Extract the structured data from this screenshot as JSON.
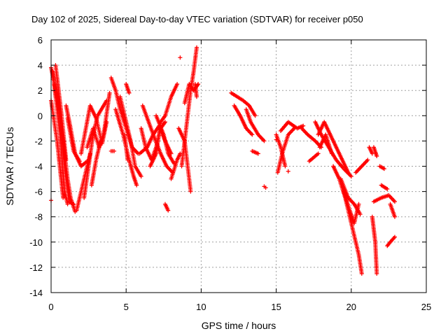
{
  "chart_data": {
    "type": "scatter",
    "title": "Day 102 of 2025, Sidereal Day-to-day VTEC variation (SDTVAR) for receiver p050",
    "xlabel": "GPS time / hours",
    "ylabel": "SDTVAR / TECUs",
    "xlim": [
      0,
      25
    ],
    "ylim": [
      -14,
      6
    ],
    "xticks": [
      0,
      5,
      10,
      15,
      20,
      25
    ],
    "yticks": [
      -14,
      -12,
      -10,
      -8,
      -6,
      -4,
      -2,
      0,
      2,
      4,
      6
    ],
    "grid": true,
    "marker": "+",
    "color": "#ff0000",
    "series": [
      {
        "name": "SDTVAR",
        "tracks": [
          [
            [
              0.0,
              3.8
            ],
            [
              0.4,
              1.5
            ],
            [
              0.8,
              -2.0
            ],
            [
              1.1,
              -5.0
            ],
            [
              1.3,
              -6.5
            ],
            [
              1.6,
              -7.6
            ]
          ],
          [
            [
              0.1,
              3.5
            ],
            [
              0.5,
              0.5
            ],
            [
              0.9,
              -4.0
            ],
            [
              1.2,
              -6.8
            ],
            [
              1.5,
              -7.0
            ]
          ],
          [
            [
              0.2,
              2.5
            ],
            [
              0.6,
              -1.5
            ],
            [
              0.9,
              -6.0
            ],
            [
              1.1,
              -7.0
            ]
          ],
          [
            [
              0.0,
              1.2
            ],
            [
              0.4,
              -2.0
            ],
            [
              0.8,
              -6.5
            ]
          ],
          [
            [
              0.3,
              4.0
            ],
            [
              0.7,
              0.0
            ],
            [
              1.0,
              -3.5
            ]
          ],
          [
            [
              1.0,
              0.8
            ],
            [
              1.3,
              -1.0
            ],
            [
              1.6,
              -3.0
            ],
            [
              2.0,
              -4.0
            ],
            [
              2.4,
              -3.6
            ]
          ],
          [
            [
              1.1,
              -0.2
            ],
            [
              1.5,
              -2.8
            ],
            [
              1.9,
              -3.6
            ]
          ],
          [
            [
              1.7,
              -7.5
            ],
            [
              2.0,
              -6.0
            ],
            [
              2.3,
              -4.5
            ],
            [
              2.6,
              -3.0
            ]
          ],
          [
            [
              2.2,
              -6.5
            ],
            [
              2.5,
              -4.0
            ],
            [
              2.8,
              -1.5
            ],
            [
              3.1,
              0.0
            ],
            [
              3.5,
              0.8
            ],
            [
              3.7,
              1.2
            ]
          ],
          [
            [
              2.4,
              -2.5
            ],
            [
              2.8,
              -1.0
            ],
            [
              3.2,
              -2.5
            ],
            [
              3.5,
              -1.5
            ],
            [
              3.9,
              1.8
            ]
          ],
          [
            [
              2.0,
              -3.0
            ],
            [
              2.6,
              0.8
            ],
            [
              3.0,
              -0.2
            ],
            [
              3.4,
              -2.2
            ],
            [
              3.7,
              -0.5
            ]
          ],
          [
            [
              2.7,
              -5.5
            ],
            [
              3.0,
              -3.5
            ],
            [
              3.3,
              -2.0
            ]
          ],
          [
            [
              4.0,
              -2.8
            ],
            [
              4.2,
              -2.8
            ]
          ],
          [
            [
              4.0,
              3.0
            ],
            [
              4.3,
              2.0
            ],
            [
              4.6,
              0.5
            ],
            [
              5.0,
              -1.0
            ],
            [
              5.4,
              -2.5
            ],
            [
              5.8,
              -3.0
            ]
          ],
          [
            [
              4.3,
              0.5
            ],
            [
              4.8,
              -1.5
            ],
            [
              5.2,
              -3.5
            ],
            [
              5.5,
              -4.8
            ],
            [
              5.7,
              -5.5
            ]
          ],
          [
            [
              4.6,
              1.5
            ],
            [
              5.0,
              -0.5
            ],
            [
              5.3,
              -2.0
            ],
            [
              5.6,
              -4.0
            ],
            [
              6.0,
              -4.8
            ]
          ],
          [
            [
              5.0,
              2.5
            ],
            [
              5.2,
              1.8
            ]
          ],
          [
            [
              4.9,
              -1.5
            ],
            [
              5.1,
              -3.5
            ]
          ],
          [
            [
              5.9,
              -3.0
            ],
            [
              6.4,
              -2.5
            ],
            [
              6.8,
              -1.5
            ],
            [
              7.2,
              -0.8
            ],
            [
              7.6,
              -2.0
            ],
            [
              8.0,
              -3.0
            ]
          ],
          [
            [
              6.1,
              0.8
            ],
            [
              6.5,
              -0.5
            ],
            [
              6.9,
              -1.8
            ],
            [
              7.3,
              -3.0
            ],
            [
              7.7,
              -4.0
            ],
            [
              8.1,
              -4.5
            ]
          ],
          [
            [
              6.0,
              -1.0
            ],
            [
              6.3,
              -2.5
            ],
            [
              6.7,
              -3.5
            ],
            [
              7.0,
              -2.5
            ],
            [
              7.3,
              -1.0
            ],
            [
              7.6,
              -0.5
            ]
          ],
          [
            [
              6.6,
              -4.0
            ],
            [
              7.0,
              -3.0
            ],
            [
              7.3,
              -0.5
            ],
            [
              7.6,
              0.0
            ],
            [
              8.0,
              1.5
            ],
            [
              8.4,
              2.5
            ]
          ],
          [
            [
              7.0,
              0.0
            ],
            [
              7.5,
              -1.5
            ],
            [
              7.8,
              -3.0
            ],
            [
              8.2,
              -3.8
            ]
          ],
          [
            [
              7.6,
              -7.0
            ],
            [
              7.8,
              -7.5
            ]
          ],
          [
            [
              8.0,
              -5.0
            ],
            [
              8.4,
              -3.5
            ],
            [
              8.6,
              -3.0
            ]
          ],
          [
            [
              8.5,
              -1.0
            ],
            [
              8.9,
              -2.0
            ],
            [
              9.1,
              -4.0
            ],
            [
              9.3,
              -6.0
            ]
          ],
          [
            [
              8.7,
              -4.0
            ],
            [
              9.0,
              -1.0
            ],
            [
              9.3,
              2.0
            ],
            [
              9.5,
              3.5
            ],
            [
              9.7,
              5.4
            ]
          ],
          [
            [
              8.9,
              1.0
            ],
            [
              9.2,
              2.5
            ],
            [
              9.5,
              2.0
            ],
            [
              9.8,
              2.5
            ]
          ],
          [
            [
              9.6,
              2.5
            ],
            [
              9.7,
              1.5
            ]
          ],
          [
            [
              12.0,
              1.8
            ],
            [
              12.4,
              1.5
            ],
            [
              12.8,
              1.2
            ],
            [
              13.2,
              0.8
            ],
            [
              13.6,
              0.0
            ]
          ],
          [
            [
              12.2,
              0.8
            ],
            [
              12.6,
              0.0
            ],
            [
              13.0,
              -1.0
            ],
            [
              13.4,
              -1.5
            ]
          ],
          [
            [
              13.0,
              0.5
            ],
            [
              13.3,
              -0.5
            ],
            [
              13.8,
              -1.5
            ],
            [
              14.2,
              -2.0
            ]
          ],
          [
            [
              13.4,
              -2.8
            ],
            [
              13.8,
              -3.0
            ]
          ],
          [
            [
              14.2,
              -5.6
            ]
          ],
          [
            [
              15.0,
              -1.5
            ],
            [
              15.3,
              -2.5
            ],
            [
              15.6,
              -4.0
            ]
          ],
          [
            [
              15.1,
              -4.5
            ],
            [
              15.4,
              -3.0
            ],
            [
              15.8,
              -1.5
            ],
            [
              16.2,
              -1.0
            ]
          ],
          [
            [
              15.3,
              -1.2
            ],
            [
              15.8,
              -0.5
            ],
            [
              16.4,
              -1.0
            ],
            [
              16.8,
              -0.8
            ]
          ],
          [
            [
              16.7,
              -1.0
            ],
            [
              17.1,
              -1.5
            ],
            [
              17.6,
              -2.0
            ],
            [
              18.0,
              -2.5
            ]
          ],
          [
            [
              17.2,
              -3.6
            ],
            [
              17.8,
              -3.0
            ]
          ],
          [
            [
              17.8,
              -1.5
            ],
            [
              18.2,
              -0.5
            ],
            [
              18.6,
              -1.5
            ],
            [
              19.0,
              -2.5
            ],
            [
              19.4,
              -3.5
            ],
            [
              19.8,
              -4.5
            ]
          ],
          [
            [
              17.6,
              -0.5
            ],
            [
              18.0,
              -1.5
            ],
            [
              18.5,
              -2.5
            ],
            [
              19.0,
              -3.5
            ],
            [
              19.5,
              -4.2
            ],
            [
              20.0,
              -4.8
            ]
          ],
          [
            [
              17.9,
              -2.5
            ],
            [
              18.3,
              -1.5
            ],
            [
              18.7,
              -3.0
            ]
          ],
          [
            [
              18.8,
              -4.0
            ],
            [
              19.2,
              -5.0
            ],
            [
              19.6,
              -6.5
            ],
            [
              19.9,
              -8.0
            ],
            [
              20.2,
              -9.5
            ],
            [
              20.5,
              -11.0
            ],
            [
              20.7,
              -12.5
            ]
          ],
          [
            [
              19.3,
              -5.0
            ],
            [
              19.8,
              -6.5
            ],
            [
              20.2,
              -7.0
            ],
            [
              20.6,
              -7.8
            ]
          ],
          [
            [
              19.5,
              -6.0
            ],
            [
              19.9,
              -7.5
            ],
            [
              20.2,
              -8.5
            ],
            [
              20.5,
              -7.0
            ]
          ],
          [
            [
              20.3,
              -4.5
            ],
            [
              20.7,
              -4.0
            ],
            [
              21.1,
              -3.5
            ]
          ],
          [
            [
              21.2,
              -2.5
            ],
            [
              21.4,
              -3.0
            ]
          ],
          [
            [
              21.5,
              -2.5
            ],
            [
              21.7,
              -3.2
            ]
          ],
          [
            [
              21.4,
              -8.0
            ],
            [
              21.6,
              -10.0
            ],
            [
              21.7,
              -12.5
            ]
          ],
          [
            [
              21.9,
              -4.0
            ],
            [
              22.2,
              -4.2
            ]
          ],
          [
            [
              21.5,
              -6.8
            ],
            [
              22.0,
              -6.5
            ],
            [
              22.5,
              -6.3
            ],
            [
              22.9,
              -6.8
            ]
          ],
          [
            [
              22.0,
              -5.5
            ],
            [
              22.4,
              -5.8
            ]
          ],
          [
            [
              22.6,
              -7.0
            ],
            [
              22.9,
              -8.0
            ]
          ],
          [
            [
              22.4,
              -10.3
            ],
            [
              22.6,
              -10.0
            ],
            [
              22.9,
              -9.6
            ]
          ]
        ],
        "points": [
          [
            0.0,
            -6.7
          ],
          [
            8.6,
            4.6
          ],
          [
            14.3,
            -5.7
          ],
          [
            15.0,
            -1.9
          ],
          [
            15.8,
            -4.4
          ]
        ]
      }
    ]
  }
}
